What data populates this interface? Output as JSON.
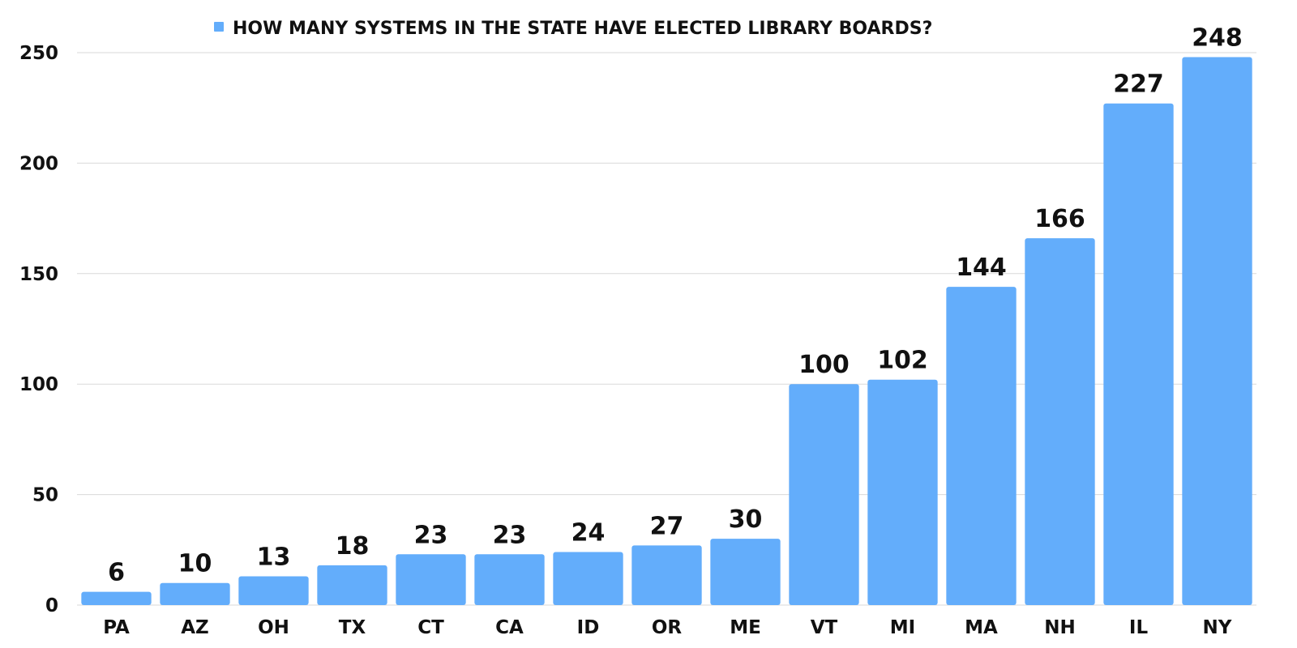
{
  "chart_data": {
    "type": "bar",
    "legend": {
      "label": "HOW MANY SYSTEMS IN THE STATE HAVE ELECTED LIBRARY BOARDS?",
      "placement": "top-center"
    },
    "categories": [
      "PA",
      "AZ",
      "OH",
      "TX",
      "CT",
      "CA",
      "ID",
      "OR",
      "ME",
      "VT",
      "MI",
      "MA",
      "NH",
      "IL",
      "NY"
    ],
    "values": [
      6,
      10,
      13,
      18,
      23,
      23,
      24,
      27,
      30,
      100,
      102,
      144,
      166,
      227,
      248
    ],
    "data_labels": [
      "6",
      "10",
      "13",
      "18",
      "23",
      "23",
      "24",
      "27",
      "30",
      "100",
      "102",
      "144",
      "166",
      "227",
      "248"
    ],
    "ylim": [
      0,
      250
    ],
    "yticks": [
      0,
      50,
      100,
      150,
      200,
      250
    ],
    "ytick_labels": [
      "0",
      "50",
      "100",
      "150",
      "200",
      "250"
    ],
    "grid": true,
    "colors": {
      "bar": "#63adfb",
      "legend_marker": "#63adfb",
      "grid": "#d9d9d9",
      "text": "#111111"
    }
  }
}
